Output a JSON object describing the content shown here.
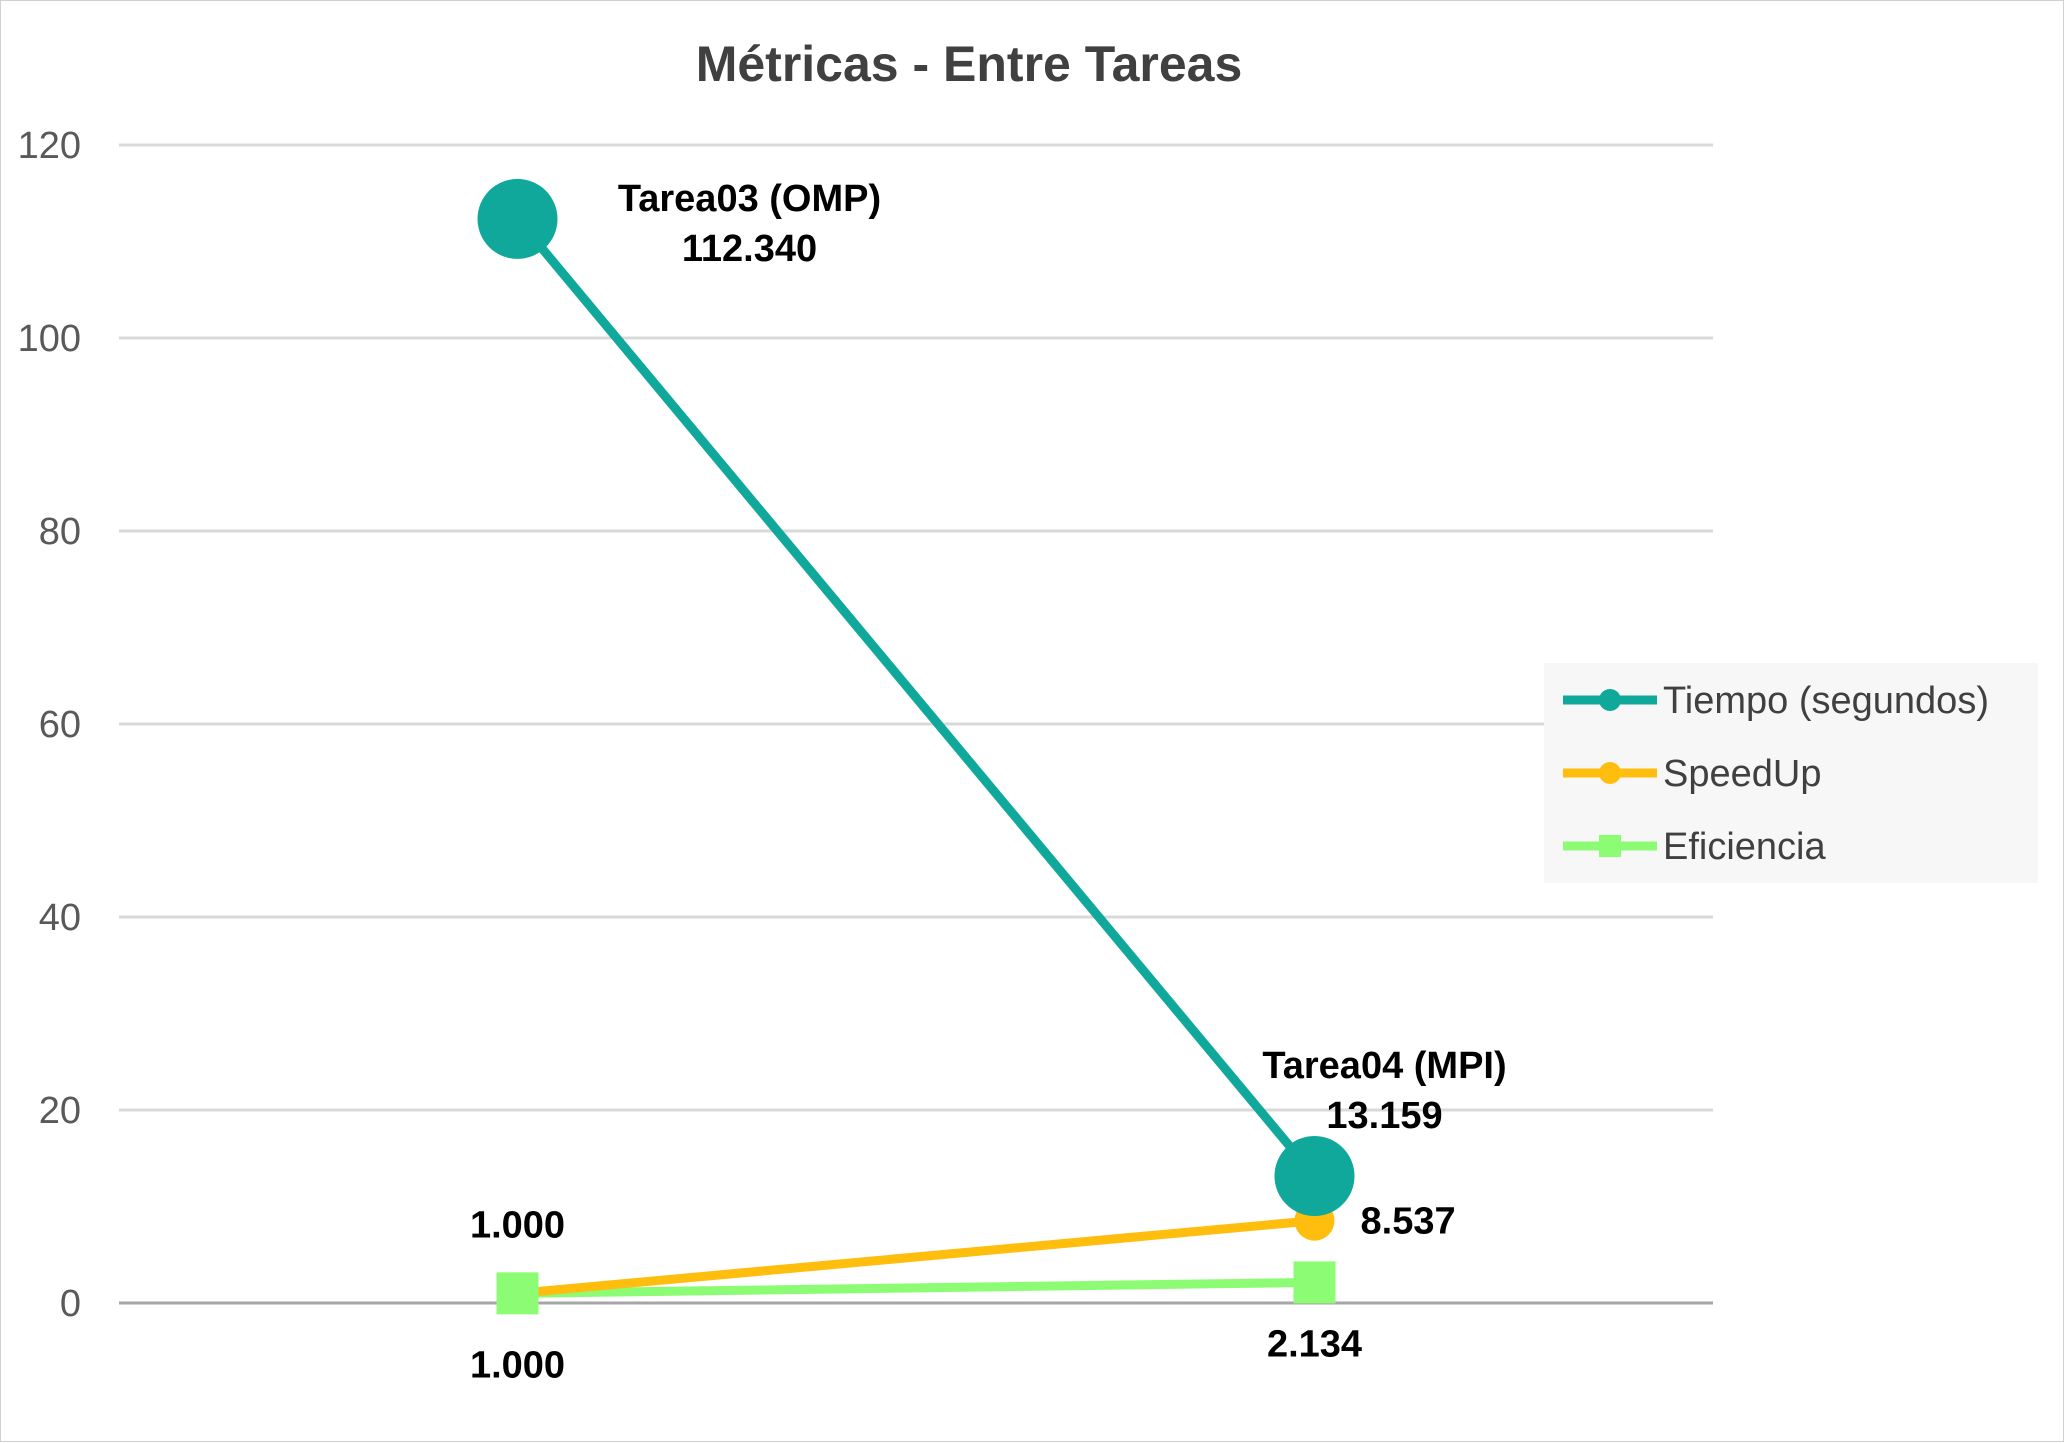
{
  "chart_data": {
    "type": "line",
    "title": "Métricas - Entre Tareas",
    "xlabel": "",
    "ylabel": "",
    "categories": [
      "Tarea03 (OMP)",
      "Tarea04 (MPI)"
    ],
    "ylim": [
      0,
      120
    ],
    "yticks": [
      0,
      20,
      40,
      60,
      80,
      100,
      120
    ],
    "ytick_labels": [
      "0",
      "20",
      "40",
      "60",
      "80",
      "100",
      "120"
    ],
    "grid": true,
    "legend_position": "right",
    "series": [
      {
        "name": "Tiempo (segundos)",
        "values": [
          112.34,
          13.159
        ],
        "value_labels": [
          "112.340",
          "13.159"
        ],
        "color": "#0FA89B",
        "marker": "circle"
      },
      {
        "name": "SpeedUp",
        "values": [
          1.0,
          8.537
        ],
        "value_labels": [
          "1.000",
          "8.537"
        ],
        "color": "#FFBD0E",
        "marker": "circle"
      },
      {
        "name": "Eficiencia",
        "values": [
          1.0,
          2.134
        ],
        "value_labels": [
          "1.000",
          "2.134"
        ],
        "color": "#8CFC74",
        "marker": "square"
      }
    ]
  }
}
